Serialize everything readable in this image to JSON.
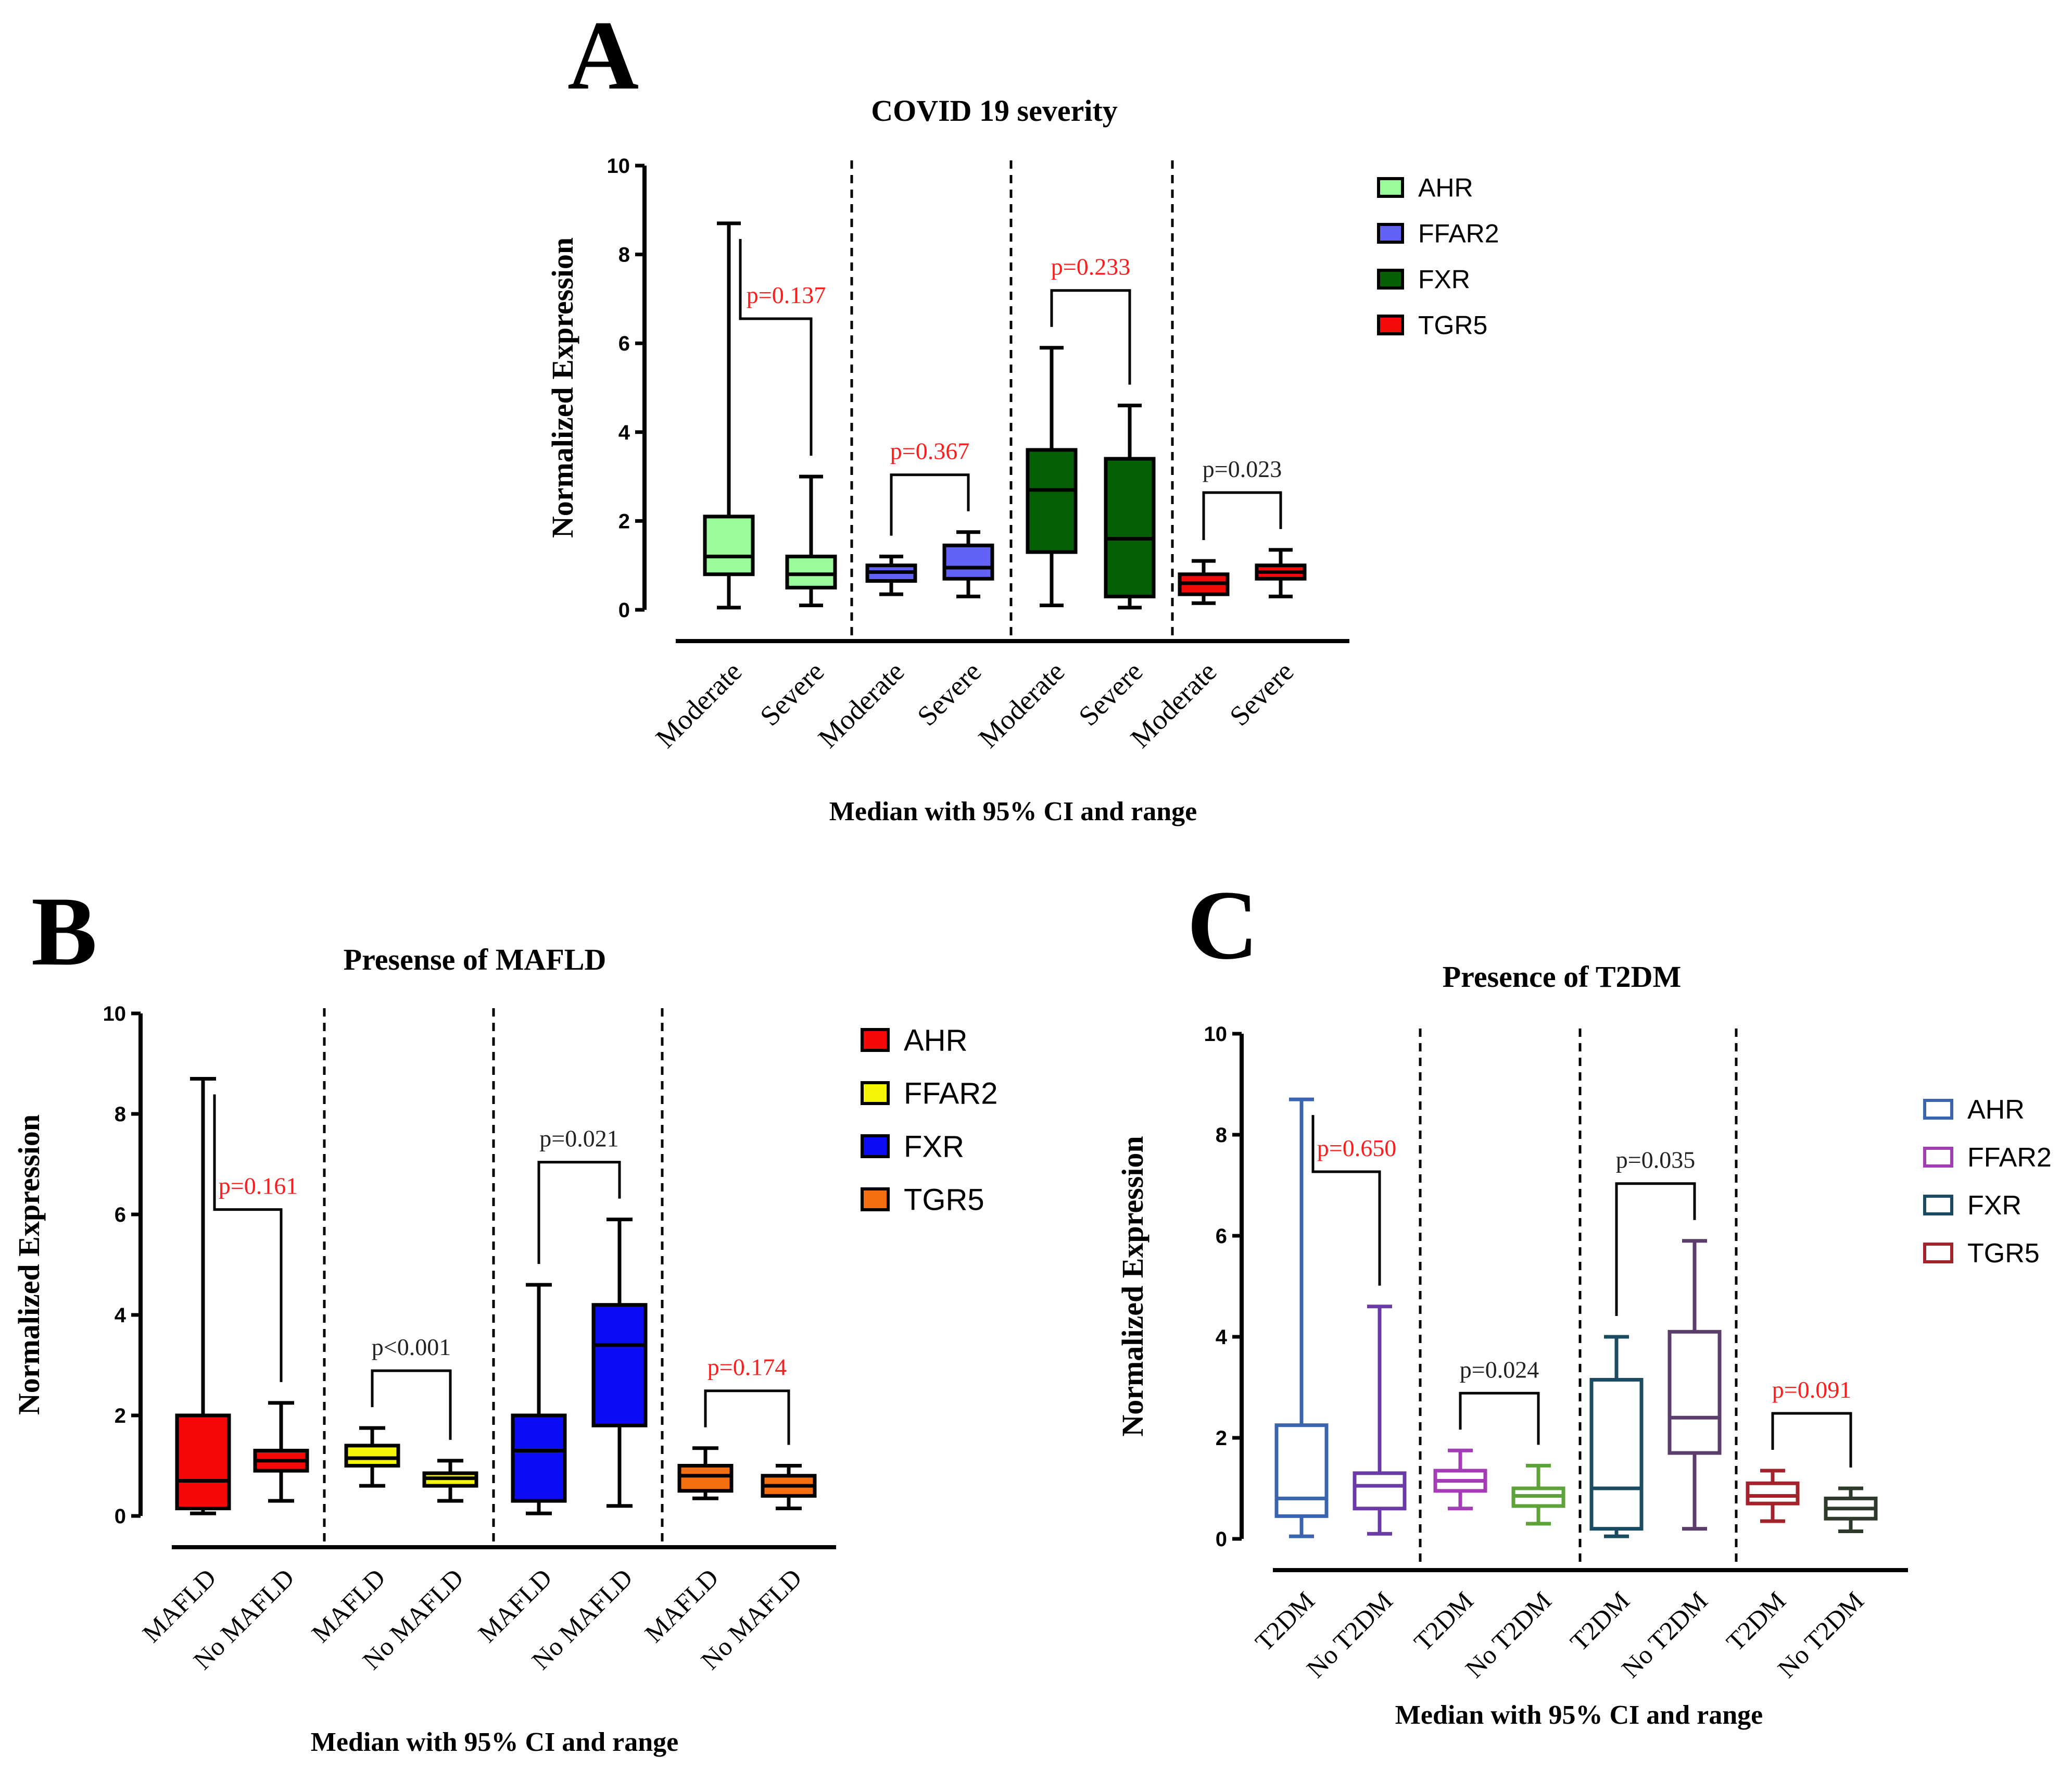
{
  "chart_data": [
    {
      "panel": "A",
      "type": "box",
      "style": "filled",
      "title": "COVID 19 severity",
      "ylabel": "Normalized Expression",
      "xlabel": "Median with 95% CI and range",
      "ylim": [
        0,
        10
      ],
      "yticks": [
        0,
        2,
        4,
        6,
        8,
        10
      ],
      "legend": [
        {
          "label": "AHR",
          "color": "#99fb99"
        },
        {
          "label": "FFAR2",
          "color": "#6262f8"
        },
        {
          "label": "FXR",
          "color": "#056005"
        },
        {
          "label": "TGR5",
          "color": "#f50a0a"
        }
      ],
      "groups": [
        {
          "series": "AHR",
          "color": "#99fb99",
          "pvalue": "p=0.137",
          "pcolor": "#ff1c1c",
          "boxes": [
            {
              "label": "Moderate",
              "min": 0.05,
              "q1": 0.8,
              "median": 1.2,
              "q3": 2.1,
              "max": 8.7
            },
            {
              "label": "Severe",
              "min": 0.1,
              "q1": 0.5,
              "median": 0.8,
              "q3": 1.2,
              "max": 3.0
            }
          ]
        },
        {
          "series": "FFAR2",
          "color": "#6262f8",
          "pvalue": "p=0.367",
          "pcolor": "#ff1c1c",
          "boxes": [
            {
              "label": "Moderate",
              "min": 0.35,
              "q1": 0.65,
              "median": 0.85,
              "q3": 1.0,
              "max": 1.2
            },
            {
              "label": "Severe",
              "min": 0.3,
              "q1": 0.7,
              "median": 0.95,
              "q3": 1.45,
              "max": 1.75
            }
          ]
        },
        {
          "series": "FXR",
          "color": "#056005",
          "pvalue": "p=0.233",
          "pcolor": "#ff1c1c",
          "boxes": [
            {
              "label": "Moderate",
              "min": 0.1,
              "q1": 1.3,
              "median": 2.7,
              "q3": 3.6,
              "max": 5.9
            },
            {
              "label": "Severe",
              "min": 0.05,
              "q1": 0.3,
              "median": 1.6,
              "q3": 3.4,
              "max": 4.6
            }
          ]
        },
        {
          "series": "TGR5",
          "color": "#f50a0a",
          "pvalue": "p=0.023",
          "pcolor": "#222222",
          "boxes": [
            {
              "label": "Moderate",
              "min": 0.15,
              "q1": 0.35,
              "median": 0.6,
              "q3": 0.8,
              "max": 1.1
            },
            {
              "label": "Severe",
              "min": 0.3,
              "q1": 0.7,
              "median": 0.85,
              "q3": 1.0,
              "max": 1.35
            }
          ]
        }
      ]
    },
    {
      "panel": "B",
      "type": "box",
      "style": "filled",
      "title": "Presense of MAFLD",
      "ylabel": "Normalized Expression",
      "xlabel": "Median with 95% CI and range",
      "ylim": [
        0,
        10
      ],
      "yticks": [
        0,
        2,
        4,
        6,
        8,
        10
      ],
      "legend": [
        {
          "label": "AHR",
          "color": "#f60808"
        },
        {
          "label": "FFAR2",
          "color": "#f5f508"
        },
        {
          "label": "FXR",
          "color": "#0c0cf5"
        },
        {
          "label": "TGR5",
          "color": "#f56f0f"
        }
      ],
      "groups": [
        {
          "series": "AHR",
          "color": "#f60808",
          "pvalue": "p=0.161",
          "pcolor": "#ff1c1c",
          "boxes": [
            {
              "label": "MAFLD",
              "min": 0.05,
              "q1": 0.15,
              "median": 0.7,
              "q3": 2.0,
              "max": 8.7
            },
            {
              "label": "No MAFLD",
              "min": 0.3,
              "q1": 0.9,
              "median": 1.1,
              "q3": 1.3,
              "max": 2.25
            }
          ]
        },
        {
          "series": "FFAR2",
          "color": "#f5f508",
          "pvalue": "p<0.001",
          "pcolor": "#222222",
          "boxes": [
            {
              "label": "MAFLD",
              "min": 0.6,
              "q1": 1.0,
              "median": 1.15,
              "q3": 1.4,
              "max": 1.75
            },
            {
              "label": "No MAFLD",
              "min": 0.3,
              "q1": 0.6,
              "median": 0.75,
              "q3": 0.85,
              "max": 1.1
            }
          ]
        },
        {
          "series": "FXR",
          "color": "#0c0cf5",
          "pvalue": "p=0.021",
          "pcolor": "#222222",
          "boxes": [
            {
              "label": "MAFLD",
              "min": 0.05,
              "q1": 0.3,
              "median": 1.3,
              "q3": 2.0,
              "max": 4.6
            },
            {
              "label": "No MAFLD",
              "min": 0.2,
              "q1": 1.8,
              "median": 3.4,
              "q3": 4.2,
              "max": 5.9
            }
          ]
        },
        {
          "series": "TGR5",
          "color": "#f56f0f",
          "pvalue": "p=0.174",
          "pcolor": "#ff1c1c",
          "boxes": [
            {
              "label": "MAFLD",
              "min": 0.35,
              "q1": 0.5,
              "median": 0.8,
              "q3": 1.0,
              "max": 1.35
            },
            {
              "label": "No MAFLD",
              "min": 0.15,
              "q1": 0.4,
              "median": 0.6,
              "q3": 0.8,
              "max": 1.0
            }
          ]
        }
      ]
    },
    {
      "panel": "C",
      "type": "box",
      "style": "outline",
      "title": "Presence of T2DM",
      "ylabel": "Normalized Expression",
      "xlabel": "Median with 95% CI and range",
      "ylim": [
        0,
        10
      ],
      "yticks": [
        0,
        2,
        4,
        6,
        8,
        10
      ],
      "legend": [
        {
          "label": "AHR",
          "color": "#3a63b0"
        },
        {
          "label": "FFAR2",
          "color": "#a43cb5"
        },
        {
          "label": "FXR",
          "color": "#1b4a63"
        },
        {
          "label": "TGR5",
          "color": "#a3232b"
        }
      ],
      "groups": [
        {
          "series": "AHR",
          "pvalue": "p=0.650",
          "pcolor": "#ff1c1c",
          "boxes": [
            {
              "label": "T2DM",
              "color": "#3a63b0",
              "min": 0.05,
              "q1": 0.45,
              "median": 0.8,
              "q3": 2.25,
              "max": 8.7
            },
            {
              "label": "No T2DM",
              "color": "#6b3aa8",
              "min": 0.1,
              "q1": 0.6,
              "median": 1.05,
              "q3": 1.3,
              "max": 4.6
            }
          ]
        },
        {
          "series": "FFAR2",
          "pvalue": "p=0.024",
          "pcolor": "#222222",
          "boxes": [
            {
              "label": "T2DM",
              "color": "#a43cb5",
              "min": 0.6,
              "q1": 0.95,
              "median": 1.15,
              "q3": 1.35,
              "max": 1.75
            },
            {
              "label": "No T2DM",
              "color": "#5ea33a",
              "min": 0.3,
              "q1": 0.65,
              "median": 0.85,
              "q3": 1.0,
              "max": 1.45
            }
          ]
        },
        {
          "series": "FXR",
          "pvalue": "p=0.035",
          "pcolor": "#222222",
          "boxes": [
            {
              "label": "T2DM",
              "color": "#1b4a63",
              "min": 0.05,
              "q1": 0.2,
              "median": 1.0,
              "q3": 3.15,
              "max": 4.0
            },
            {
              "label": "No T2DM",
              "color": "#5b3d6b",
              "min": 0.2,
              "q1": 1.7,
              "median": 2.4,
              "q3": 4.1,
              "max": 5.9
            }
          ]
        },
        {
          "series": "TGR5",
          "pvalue": "p=0.091",
          "pcolor": "#ff1c1c",
          "boxes": [
            {
              "label": "T2DM",
              "color": "#a3232b",
              "min": 0.35,
              "q1": 0.7,
              "median": 0.85,
              "q3": 1.1,
              "max": 1.35
            },
            {
              "label": "No T2DM",
              "color": "#2e3a2a",
              "min": 0.15,
              "q1": 0.4,
              "median": 0.6,
              "q3": 0.8,
              "max": 1.0
            }
          ]
        }
      ]
    }
  ],
  "panel_letters": [
    "A",
    "B",
    "C"
  ]
}
